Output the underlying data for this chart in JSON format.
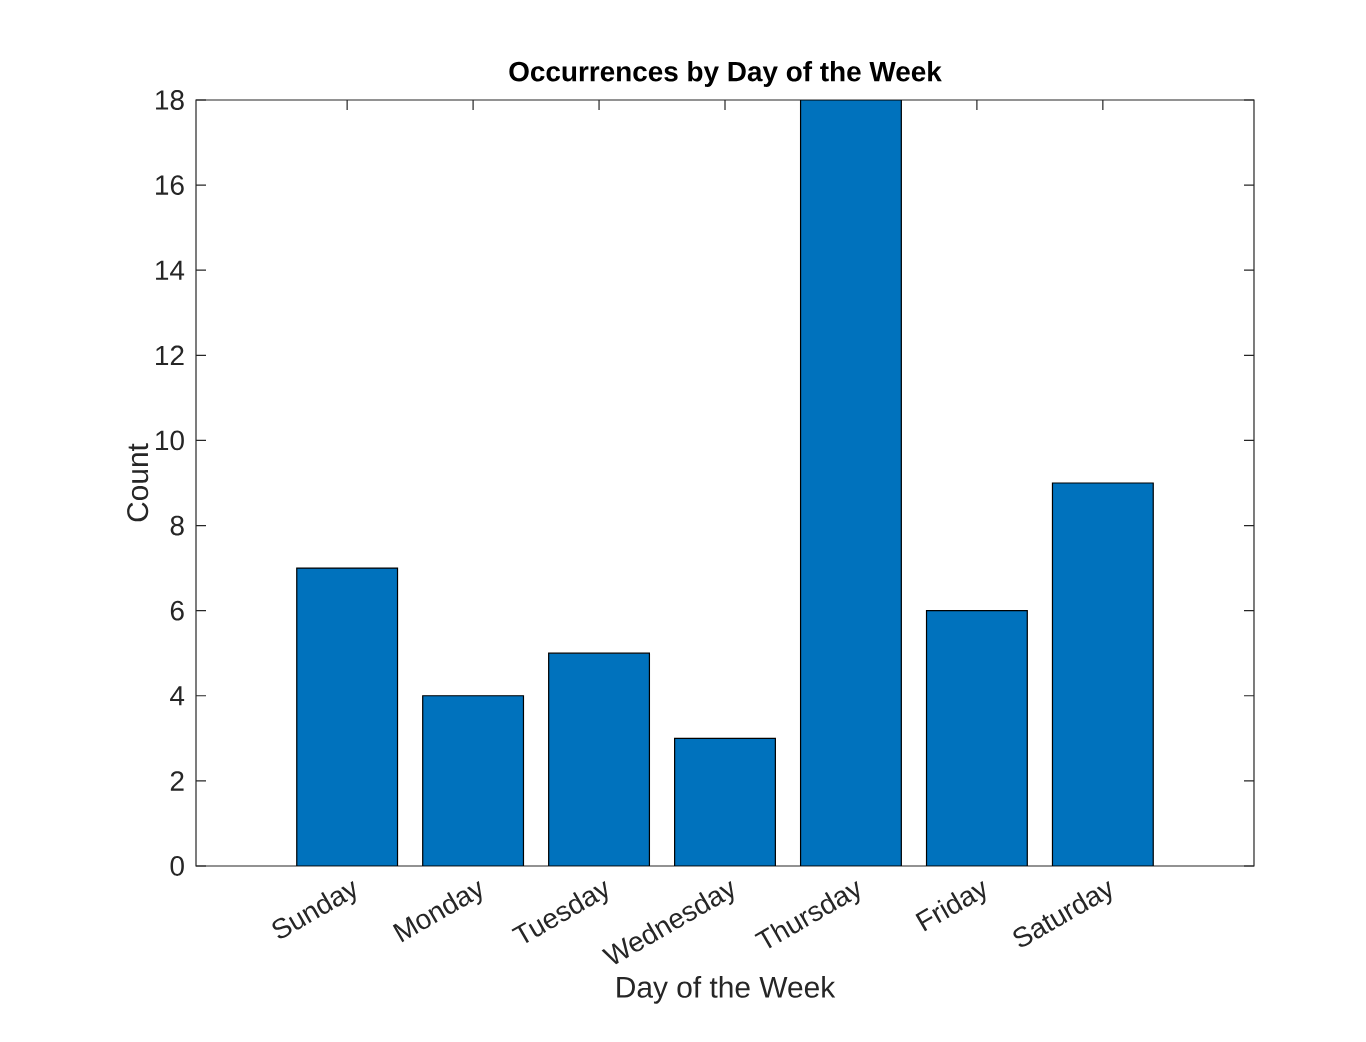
{
  "chart_data": {
    "type": "bar",
    "title": "Occurrences by Day of the Week",
    "xlabel": "Day of the Week",
    "ylabel": "Count",
    "categories": [
      "Sunday",
      "Monday",
      "Tuesday",
      "Wednesday",
      "Thursday",
      "Friday",
      "Saturday"
    ],
    "values": [
      7,
      4,
      5,
      3,
      18,
      6,
      9
    ],
    "color": "#0072bd",
    "ylim": [
      0,
      18
    ],
    "yticks": [
      0,
      2,
      4,
      6,
      8,
      10,
      12,
      14,
      16,
      18
    ]
  }
}
